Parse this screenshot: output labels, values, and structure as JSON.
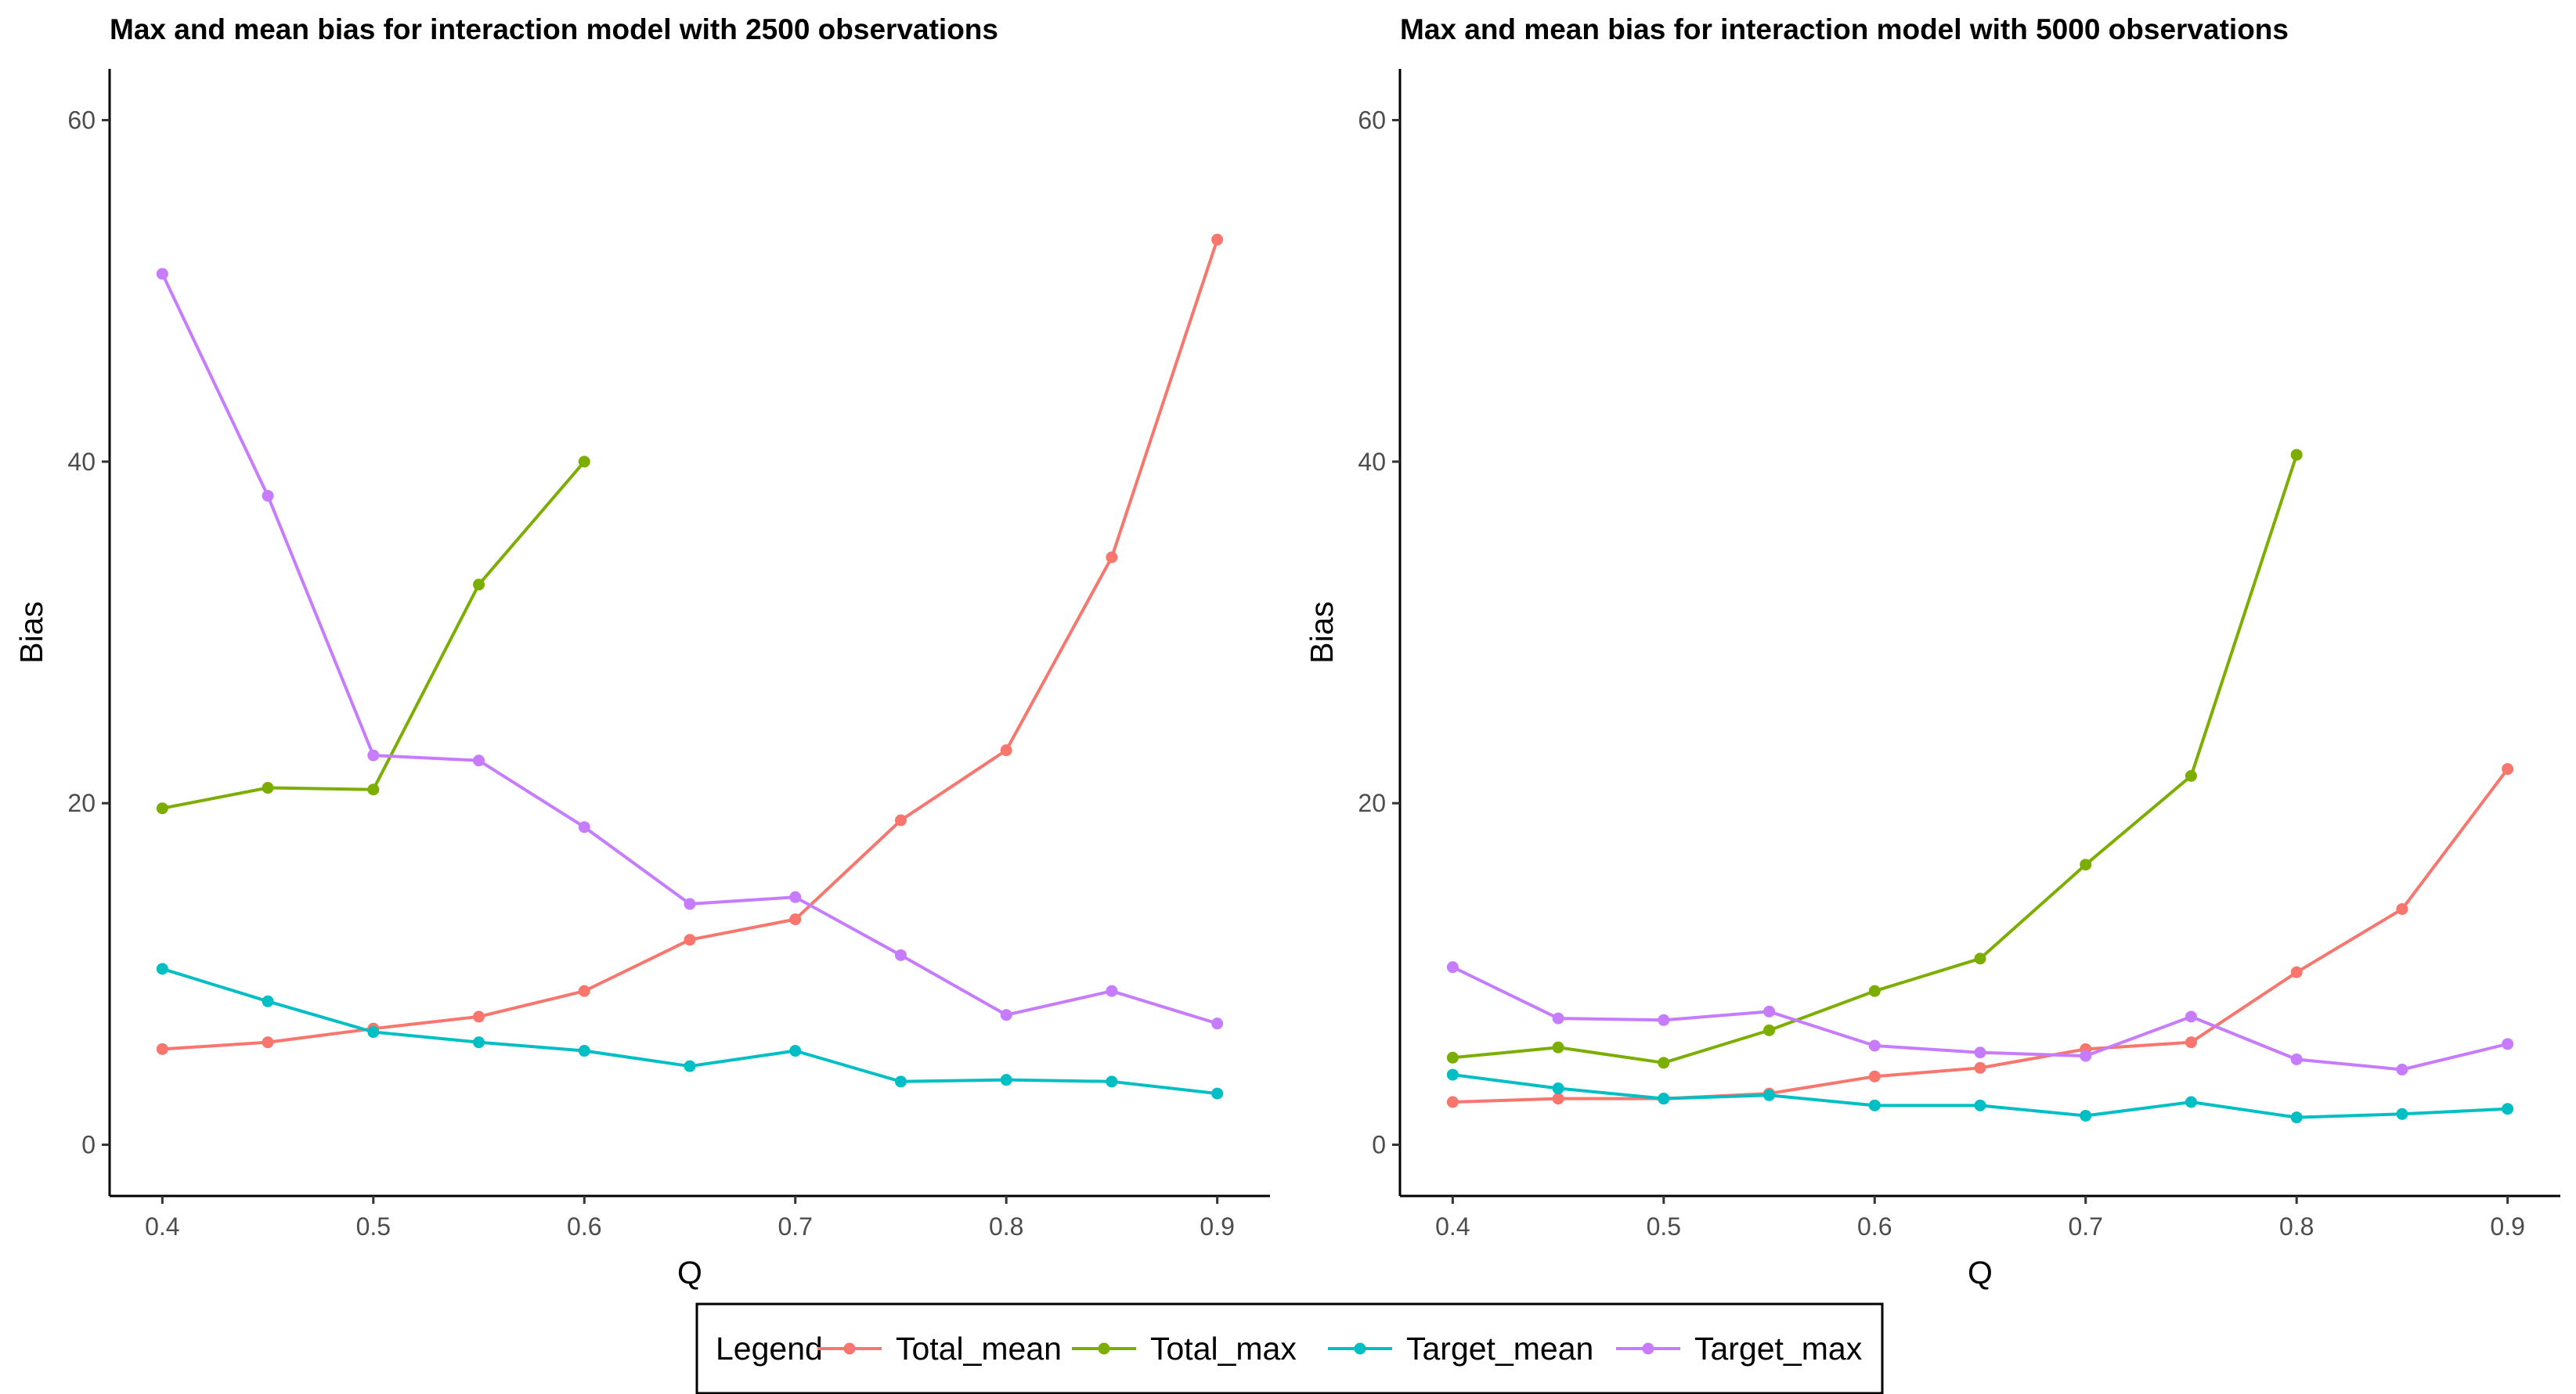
{
  "legend": {
    "title": "Legend",
    "entries": [
      {
        "name": "Total_mean",
        "color": "#F8766D"
      },
      {
        "name": "Total_max",
        "color": "#7CAE00"
      },
      {
        "name": "Target_mean",
        "color": "#00BFC4"
      },
      {
        "name": "Target_max",
        "color": "#C77CFF"
      }
    ],
    "placement": "bottom"
  },
  "chart_data": [
    {
      "type": "line",
      "title": "Max and mean bias for interaction model with 2500 observations",
      "xlabel": "Q",
      "ylabel": "Bias",
      "xlim": [
        0.375,
        0.925
      ],
      "ylim": [
        -3,
        63
      ],
      "xticks": [
        "0.4",
        "0.5",
        "0.6",
        "0.7",
        "0.8",
        "0.9"
      ],
      "yticks": [
        "0",
        "20",
        "40",
        "60"
      ],
      "grid": false,
      "series": [
        {
          "name": "Total_mean",
          "color": "#F8766D",
          "x": [
            0.4,
            0.45,
            0.5,
            0.55,
            0.6,
            0.65,
            0.7,
            0.75,
            0.8,
            0.85,
            0.9
          ],
          "y": [
            5.6,
            6.0,
            6.8,
            7.5,
            9.0,
            12.0,
            13.2,
            19.0,
            23.1,
            34.4,
            53.0
          ]
        },
        {
          "name": "Total_max",
          "color": "#7CAE00",
          "x": [
            0.4,
            0.45,
            0.5,
            0.55,
            0.6
          ],
          "y": [
            19.7,
            20.9,
            20.8,
            32.8,
            40.0
          ]
        },
        {
          "name": "Target_mean",
          "color": "#00BFC4",
          "x": [
            0.4,
            0.45,
            0.5,
            0.55,
            0.6,
            0.65,
            0.7,
            0.75,
            0.8,
            0.85,
            0.9
          ],
          "y": [
            10.3,
            8.4,
            6.6,
            6.0,
            5.5,
            4.6,
            5.5,
            3.7,
            3.8,
            3.7,
            3.0
          ]
        },
        {
          "name": "Target_max",
          "color": "#C77CFF",
          "x": [
            0.4,
            0.45,
            0.5,
            0.55,
            0.6,
            0.65,
            0.7,
            0.75,
            0.8,
            0.85,
            0.9
          ],
          "y": [
            51.0,
            38.0,
            22.8,
            22.5,
            18.6,
            14.1,
            14.5,
            11.1,
            7.6,
            9.0,
            7.1
          ]
        }
      ]
    },
    {
      "type": "line",
      "title": "Max and mean bias for interaction model with 5000 observations",
      "xlabel": "Q",
      "ylabel": "Bias",
      "xlim": [
        0.375,
        0.925
      ],
      "ylim": [
        -3,
        63
      ],
      "xticks": [
        "0.4",
        "0.5",
        "0.6",
        "0.7",
        "0.8",
        "0.9"
      ],
      "yticks": [
        "0",
        "20",
        "40",
        "60"
      ],
      "grid": false,
      "series": [
        {
          "name": "Total_mean",
          "color": "#F8766D",
          "x": [
            0.4,
            0.45,
            0.5,
            0.55,
            0.6,
            0.65,
            0.7,
            0.75,
            0.8,
            0.85,
            0.9
          ],
          "y": [
            2.5,
            2.7,
            2.7,
            3.0,
            4.0,
            4.5,
            5.6,
            6.0,
            10.1,
            13.8,
            22.0
          ]
        },
        {
          "name": "Total_max",
          "color": "#7CAE00",
          "x": [
            0.4,
            0.45,
            0.5,
            0.55,
            0.6,
            0.65,
            0.7,
            0.75,
            0.8
          ],
          "y": [
            5.1,
            5.7,
            4.8,
            6.7,
            9.0,
            10.9,
            16.4,
            21.6,
            40.4
          ]
        },
        {
          "name": "Target_mean",
          "color": "#00BFC4",
          "x": [
            0.4,
            0.45,
            0.5,
            0.55,
            0.6,
            0.65,
            0.7,
            0.75,
            0.8,
            0.85,
            0.9
          ],
          "y": [
            4.1,
            3.3,
            2.7,
            2.9,
            2.3,
            2.3,
            1.7,
            2.5,
            1.6,
            1.8,
            2.1
          ]
        },
        {
          "name": "Target_max",
          "color": "#C77CFF",
          "x": [
            0.4,
            0.45,
            0.5,
            0.55,
            0.6,
            0.65,
            0.7,
            0.75,
            0.8,
            0.85,
            0.9
          ],
          "y": [
            10.4,
            7.4,
            7.3,
            7.8,
            5.8,
            5.4,
            5.2,
            7.5,
            5.0,
            4.4,
            5.9
          ]
        }
      ]
    }
  ]
}
